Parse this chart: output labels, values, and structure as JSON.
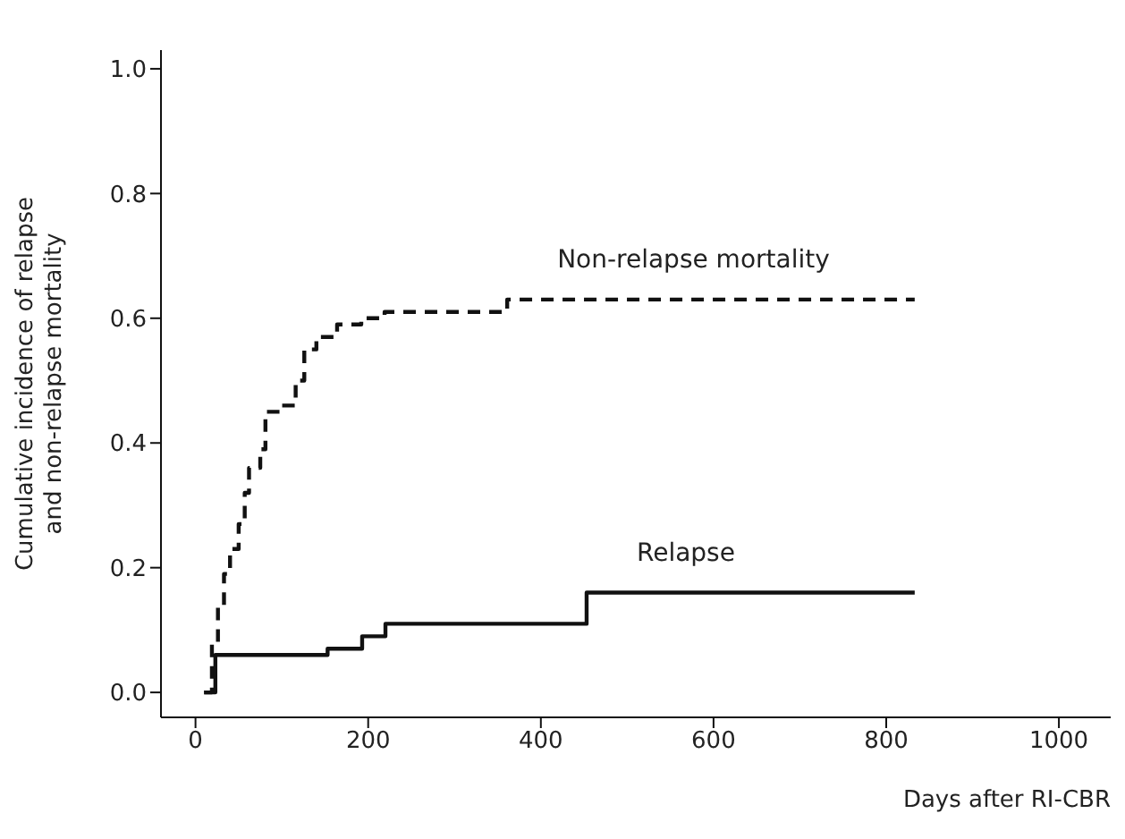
{
  "chart_data": {
    "type": "step",
    "xlabel": "Days after RI-CBR",
    "ylabel": "Cumulative incidence of relapse\nand non-relapse mortality",
    "xlim": [
      -40,
      1060
    ],
    "ylim": [
      -0.04,
      1.03
    ],
    "xticks": [
      0,
      200,
      400,
      600,
      800,
      1000
    ],
    "yticks": [
      {
        "value": 0,
        "label": "0.0"
      },
      {
        "value": 0.2,
        "label": "0.2"
      },
      {
        "value": 0.4,
        "label": "0.4"
      },
      {
        "value": 0.6,
        "label": "0.6"
      },
      {
        "value": 0.8,
        "label": "0.8"
      },
      {
        "value": 1,
        "label": "1.0"
      }
    ],
    "grid": false,
    "legend": false,
    "marker": "none",
    "series": [
      {
        "name": "Non-relapse mortality",
        "color": "#111111",
        "line_style": "dashed",
        "x": [
          10,
          19,
          26,
          33,
          40,
          50,
          57,
          62,
          75,
          81,
          99,
          116,
          126,
          140,
          164,
          192,
          219,
          361,
          833
        ],
        "values": [
          0,
          0.08,
          0.14,
          0.19,
          0.23,
          0.27,
          0.32,
          0.36,
          0.39,
          0.45,
          0.46,
          0.5,
          0.55,
          0.57,
          0.59,
          0.6,
          0.61,
          0.63,
          0.63
        ]
      },
      {
        "name": "Relapse",
        "color": "#111111",
        "line_style": "solid",
        "x": [
          10,
          23,
          153,
          193,
          220,
          453,
          833
        ],
        "values": [
          0,
          0.06,
          0.07,
          0.09,
          0.11,
          0.16,
          0.16
        ]
      }
    ]
  }
}
